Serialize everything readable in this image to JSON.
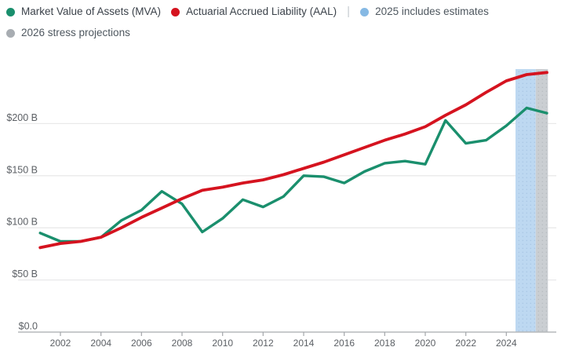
{
  "legend": {
    "separator": "|",
    "items": [
      {
        "label": "Market Value of Assets (MVA)",
        "color": "#1a8f6d"
      },
      {
        "label": "Actuarial Accrued Liability (AAL)",
        "color": "#d5131f"
      },
      {
        "label": "2025 includes estimates",
        "color": "#86b9e4"
      },
      {
        "label": "2026 stress projections",
        "color": "#a8adb2"
      }
    ]
  },
  "chart_data": {
    "type": "line",
    "x": [
      2001,
      2002,
      2003,
      2004,
      2005,
      2006,
      2007,
      2008,
      2009,
      2010,
      2011,
      2012,
      2013,
      2014,
      2015,
      2016,
      2017,
      2018,
      2019,
      2020,
      2021,
      2022,
      2023,
      2024,
      2025,
      2026
    ],
    "series": [
      {
        "name": "Market Value of Assets (MVA)",
        "color": "#1a8f6d",
        "values": [
          95,
          87,
          87,
          91,
          107,
          117,
          135,
          123,
          96,
          109,
          127,
          120,
          130,
          150,
          149,
          143,
          154,
          162,
          164,
          161,
          203,
          181,
          184,
          198,
          215,
          210
        ]
      },
      {
        "name": "Actuarial Accrued Liability (AAL)",
        "color": "#d5131f",
        "values": [
          81,
          85,
          87,
          91,
          100,
          110,
          119,
          128,
          136,
          139,
          143,
          146,
          151,
          157,
          163,
          170,
          177,
          184,
          190,
          197,
          208,
          218,
          230,
          241,
          247,
          249
        ]
      }
    ],
    "bands": [
      {
        "name": "2025 includes estimates",
        "from": 2024.45,
        "to": 2025.45,
        "color": "#bdd8f1"
      },
      {
        "name": "2026 stress projections",
        "from": 2025.45,
        "to": 2026.05,
        "color": "#caced2"
      }
    ],
    "yticks": [
      {
        "label": "$0.0",
        "value": 0
      },
      {
        "label": "$50 B",
        "value": 50
      },
      {
        "label": "$100 B",
        "value": 100
      },
      {
        "label": "$150 B",
        "value": 150
      },
      {
        "label": "$200 B",
        "value": 200
      }
    ],
    "xticks": [
      2002,
      2004,
      2006,
      2008,
      2010,
      2012,
      2014,
      2016,
      2018,
      2020,
      2022,
      2024
    ],
    "ylim": [
      0,
      252
    ],
    "xlim": [
      1999.9,
      2026.5
    ],
    "grid": true,
    "legend_position": "top",
    "title": "",
    "xlabel": "",
    "ylabel": ""
  },
  "chart_colors": {
    "gridline": "#e9e9ea",
    "axis_line": "#b5b8bb",
    "tick_mark": "#a3a6aa",
    "axis_label_text": "#5c6065"
  }
}
